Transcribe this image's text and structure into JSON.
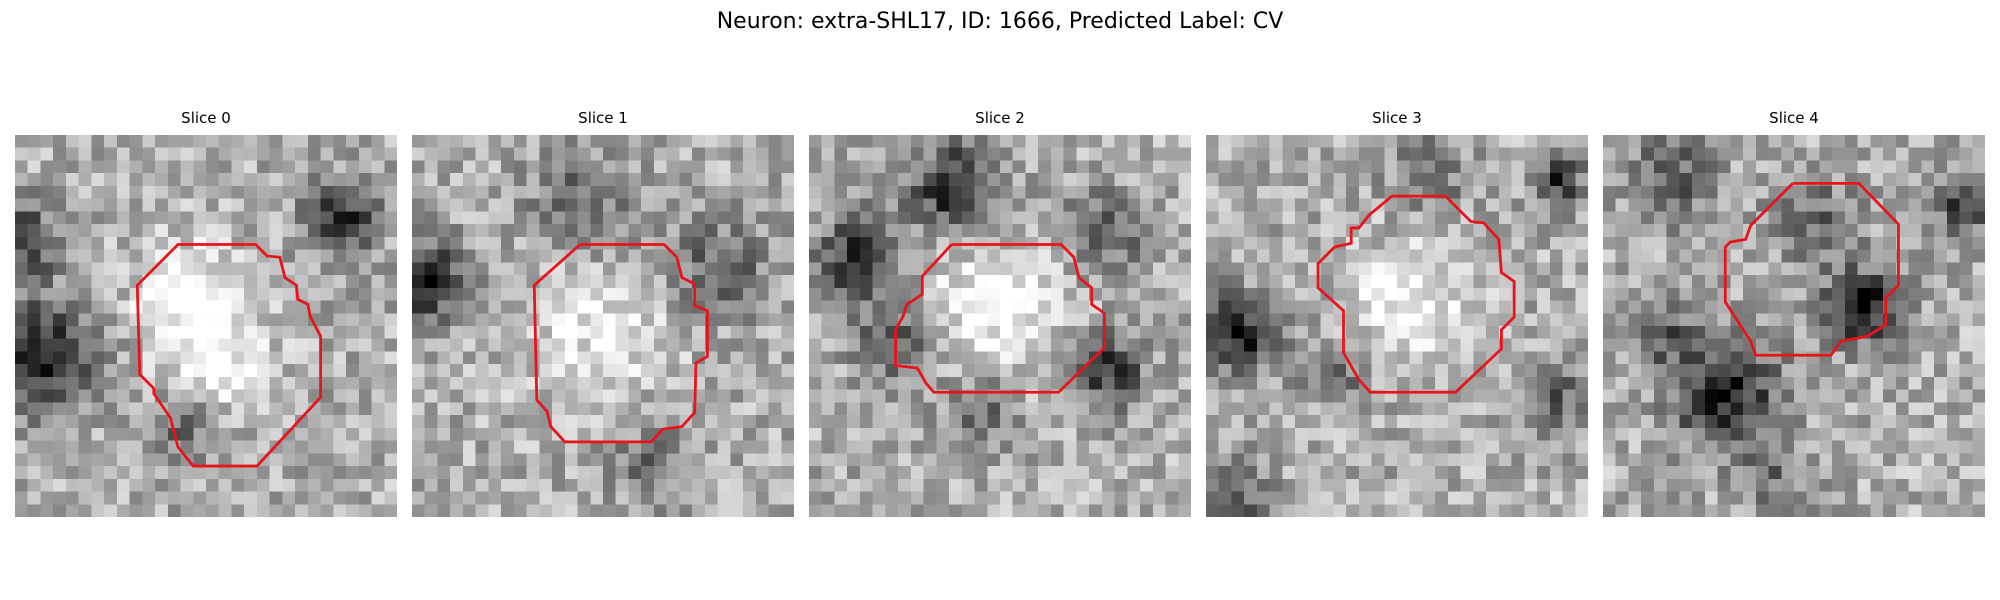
{
  "figure": {
    "title": "Neuron: extra-SHL17, ID: 1666, Predicted Label: CV"
  },
  "outline_color": "#e8141a",
  "panels": [
    {
      "title": "Slice 0",
      "seed": 11,
      "dark_spots": [
        [
          0.08,
          0.58,
          0.1,
          0.95
        ],
        [
          0.02,
          0.28,
          0.07,
          0.7
        ],
        [
          0.85,
          0.22,
          0.07,
          0.8
        ],
        [
          0.45,
          0.75,
          0.07,
          0.5
        ],
        [
          0.45,
          0.42,
          0.1,
          -0.5
        ],
        [
          0.52,
          0.6,
          0.1,
          -0.45
        ]
      ]
    },
    {
      "title": "Slice 1",
      "seed": 23,
      "dark_spots": [
        [
          0.03,
          0.38,
          0.08,
          0.85
        ],
        [
          0.45,
          0.18,
          0.1,
          0.45
        ],
        [
          0.8,
          0.35,
          0.09,
          0.5
        ],
        [
          0.48,
          0.5,
          0.14,
          -0.35
        ],
        [
          0.62,
          0.85,
          0.08,
          0.35
        ]
      ]
    },
    {
      "title": "Slice 2",
      "seed": 37,
      "dark_spots": [
        [
          0.38,
          0.14,
          0.08,
          0.9
        ],
        [
          0.13,
          0.33,
          0.08,
          0.85
        ],
        [
          0.22,
          0.55,
          0.07,
          0.6
        ],
        [
          0.78,
          0.62,
          0.07,
          0.75
        ],
        [
          0.45,
          0.72,
          0.07,
          0.5
        ],
        [
          0.48,
          0.46,
          0.13,
          -0.45
        ],
        [
          0.78,
          0.25,
          0.08,
          0.45
        ]
      ]
    },
    {
      "title": "Slice 3",
      "seed": 51,
      "dark_spots": [
        [
          0.08,
          0.52,
          0.07,
          0.95
        ],
        [
          0.92,
          0.12,
          0.05,
          0.75
        ],
        [
          0.58,
          0.1,
          0.07,
          0.45
        ],
        [
          0.05,
          0.95,
          0.08,
          0.6
        ],
        [
          0.52,
          0.45,
          0.11,
          -0.45
        ],
        [
          0.35,
          0.62,
          0.07,
          0.4
        ],
        [
          0.92,
          0.7,
          0.07,
          0.5
        ]
      ]
    },
    {
      "title": "Slice 4",
      "seed": 67,
      "dark_spots": [
        [
          0.32,
          0.68,
          0.1,
          0.9
        ],
        [
          0.68,
          0.45,
          0.07,
          0.95
        ],
        [
          0.95,
          0.18,
          0.06,
          0.75
        ],
        [
          0.18,
          0.12,
          0.08,
          0.55
        ],
        [
          0.15,
          0.52,
          0.06,
          0.5
        ],
        [
          0.55,
          0.22,
          0.08,
          0.45
        ],
        [
          0.45,
          0.9,
          0.07,
          0.35
        ]
      ]
    }
  ]
}
